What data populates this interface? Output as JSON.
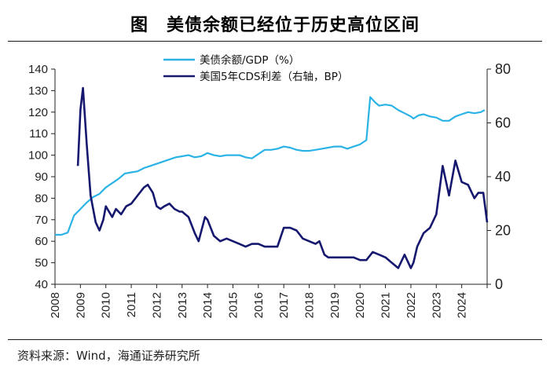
{
  "title": "图　美债余额已经位于历史高位区间",
  "source": "资料来源：Wind，海通证券研究所",
  "colors": {
    "debt": "#2bb3e6",
    "cds": "#15186e",
    "axis": "#222222"
  },
  "chart_data": {
    "type": "line",
    "x_tick_labels": [
      "2008",
      "2009",
      "2010",
      "2011",
      "2012",
      "2013",
      "2014",
      "2015",
      "2016",
      "2017",
      "2018",
      "2019",
      "2020",
      "2021",
      "2022",
      "2023",
      "2024"
    ],
    "x_range": [
      2008.0,
      2025.0
    ],
    "y_left": {
      "min": 40,
      "max": 140,
      "ticks": [
        40,
        50,
        60,
        70,
        80,
        90,
        100,
        110,
        120,
        130,
        140
      ]
    },
    "y_right": {
      "min": 0,
      "max": 80,
      "ticks": [
        0,
        20,
        40,
        60,
        80
      ]
    },
    "grid": false,
    "legend_position": "top-center",
    "series": [
      {
        "name": "美债余额/GDP（%）",
        "axis": "left",
        "color_key": "debt",
        "points": [
          [
            2008.0,
            63.0
          ],
          [
            2008.25,
            63.0
          ],
          [
            2008.5,
            64.0
          ],
          [
            2008.75,
            72.0
          ],
          [
            2009.0,
            75.0
          ],
          [
            2009.25,
            78.0
          ],
          [
            2009.5,
            80.5
          ],
          [
            2009.75,
            82.0
          ],
          [
            2010.0,
            85.0
          ],
          [
            2010.25,
            87.0
          ],
          [
            2010.5,
            89.0
          ],
          [
            2010.75,
            91.5
          ],
          [
            2011.0,
            92.0
          ],
          [
            2011.25,
            92.5
          ],
          [
            2011.5,
            94.0
          ],
          [
            2011.75,
            95.0
          ],
          [
            2012.0,
            96.0
          ],
          [
            2012.25,
            97.0
          ],
          [
            2012.5,
            98.0
          ],
          [
            2012.75,
            99.0
          ],
          [
            2013.0,
            99.5
          ],
          [
            2013.25,
            100.0
          ],
          [
            2013.5,
            99.0
          ],
          [
            2013.75,
            99.5
          ],
          [
            2014.0,
            101.0
          ],
          [
            2014.25,
            100.0
          ],
          [
            2014.5,
            99.5
          ],
          [
            2014.75,
            100.0
          ],
          [
            2015.0,
            100.0
          ],
          [
            2015.25,
            100.0
          ],
          [
            2015.5,
            99.0
          ],
          [
            2015.75,
            98.5
          ],
          [
            2016.0,
            100.5
          ],
          [
            2016.25,
            102.5
          ],
          [
            2016.5,
            102.5
          ],
          [
            2016.75,
            103.0
          ],
          [
            2017.0,
            104.0
          ],
          [
            2017.25,
            103.5
          ],
          [
            2017.5,
            102.5
          ],
          [
            2017.75,
            102.0
          ],
          [
            2018.0,
            102.0
          ],
          [
            2018.25,
            102.5
          ],
          [
            2018.5,
            103.0
          ],
          [
            2018.75,
            103.5
          ],
          [
            2019.0,
            104.0
          ],
          [
            2019.25,
            104.0
          ],
          [
            2019.5,
            103.0
          ],
          [
            2019.75,
            104.0
          ],
          [
            2020.0,
            105.0
          ],
          [
            2020.25,
            107.0
          ],
          [
            2020.4,
            127.0
          ],
          [
            2020.6,
            124.5
          ],
          [
            2020.75,
            123.0
          ],
          [
            2021.0,
            123.5
          ],
          [
            2021.25,
            123.0
          ],
          [
            2021.5,
            121.0
          ],
          [
            2021.75,
            119.5
          ],
          [
            2022.0,
            118.0
          ],
          [
            2022.1,
            117.0
          ],
          [
            2022.3,
            118.5
          ],
          [
            2022.5,
            119.0
          ],
          [
            2022.75,
            118.0
          ],
          [
            2023.0,
            117.5
          ],
          [
            2023.25,
            116.0
          ],
          [
            2023.5,
            116.0
          ],
          [
            2023.75,
            118.0
          ],
          [
            2024.0,
            119.0
          ],
          [
            2024.25,
            120.0
          ],
          [
            2024.5,
            119.5
          ],
          [
            2024.75,
            120.0
          ],
          [
            2024.9,
            121.0
          ]
        ]
      },
      {
        "name": "美国5年CDS利差（右轴，BP）",
        "axis": "right",
        "color_key": "cds",
        "points": [
          [
            2008.9,
            44
          ],
          [
            2009.0,
            65
          ],
          [
            2009.1,
            73
          ],
          [
            2009.25,
            52
          ],
          [
            2009.4,
            33
          ],
          [
            2009.6,
            23
          ],
          [
            2009.75,
            20
          ],
          [
            2009.9,
            24
          ],
          [
            2010.0,
            29
          ],
          [
            2010.25,
            25
          ],
          [
            2010.4,
            28
          ],
          [
            2010.6,
            26
          ],
          [
            2010.8,
            29
          ],
          [
            2011.0,
            30
          ],
          [
            2011.25,
            33
          ],
          [
            2011.5,
            36
          ],
          [
            2011.65,
            37
          ],
          [
            2011.85,
            34
          ],
          [
            2012.0,
            29
          ],
          [
            2012.15,
            28
          ],
          [
            2012.3,
            29
          ],
          [
            2012.5,
            30
          ],
          [
            2012.7,
            28
          ],
          [
            2012.9,
            27
          ],
          [
            2013.0,
            27
          ],
          [
            2013.25,
            25
          ],
          [
            2013.5,
            19
          ],
          [
            2013.65,
            16
          ],
          [
            2013.9,
            25
          ],
          [
            2014.0,
            24
          ],
          [
            2014.25,
            18
          ],
          [
            2014.5,
            16
          ],
          [
            2014.75,
            17
          ],
          [
            2015.0,
            16
          ],
          [
            2015.25,
            15
          ],
          [
            2015.5,
            14
          ],
          [
            2015.75,
            15
          ],
          [
            2016.0,
            15
          ],
          [
            2016.25,
            14
          ],
          [
            2016.5,
            14
          ],
          [
            2016.75,
            14
          ],
          [
            2017.0,
            21
          ],
          [
            2017.25,
            21
          ],
          [
            2017.5,
            20
          ],
          [
            2017.75,
            17
          ],
          [
            2018.0,
            16
          ],
          [
            2018.25,
            15
          ],
          [
            2018.4,
            16
          ],
          [
            2018.6,
            11
          ],
          [
            2018.75,
            10
          ],
          [
            2019.0,
            10
          ],
          [
            2019.25,
            10
          ],
          [
            2019.5,
            10
          ],
          [
            2019.75,
            10
          ],
          [
            2020.0,
            9
          ],
          [
            2020.25,
            9
          ],
          [
            2020.5,
            12
          ],
          [
            2020.75,
            11
          ],
          [
            2021.0,
            10
          ],
          [
            2021.25,
            8
          ],
          [
            2021.5,
            6
          ],
          [
            2021.75,
            11
          ],
          [
            2022.0,
            6
          ],
          [
            2022.1,
            8
          ],
          [
            2022.25,
            14
          ],
          [
            2022.5,
            19
          ],
          [
            2022.75,
            21
          ],
          [
            2023.0,
            26
          ],
          [
            2023.25,
            44
          ],
          [
            2023.5,
            33
          ],
          [
            2023.75,
            46
          ],
          [
            2024.0,
            38
          ],
          [
            2024.25,
            37
          ],
          [
            2024.5,
            32
          ],
          [
            2024.65,
            34
          ],
          [
            2024.85,
            34
          ],
          [
            2025.0,
            23
          ]
        ]
      }
    ]
  }
}
